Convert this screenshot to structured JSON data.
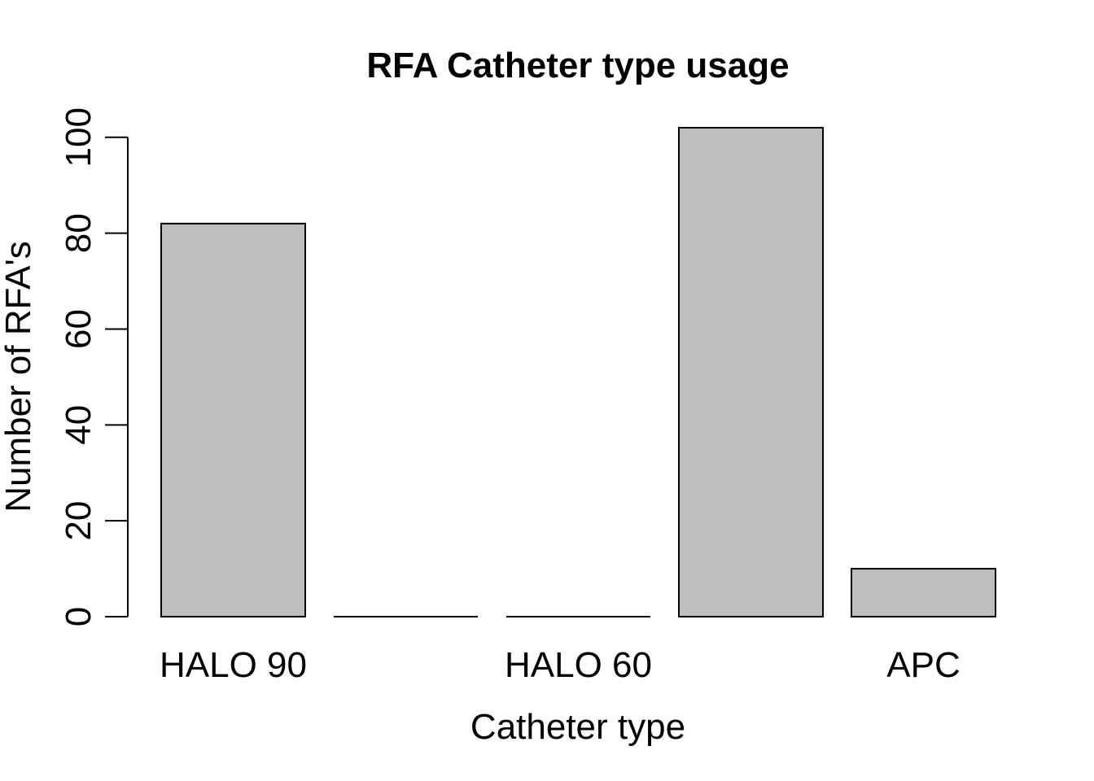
{
  "chart_data": {
    "type": "bar",
    "title": "RFA Catheter type usage",
    "xlabel": "Catheter type",
    "ylabel": "Number of RFA's",
    "categories": [
      "HALO 90",
      "",
      "HALO 60",
      "",
      "APC"
    ],
    "values": [
      82,
      0,
      0,
      102,
      10
    ],
    "ylim": [
      0,
      102
    ],
    "yticks": [
      0,
      20,
      40,
      60,
      80,
      100
    ],
    "grid": false,
    "legend": "none",
    "bar_color": "#bebebe",
    "edge_color": "#000000"
  }
}
